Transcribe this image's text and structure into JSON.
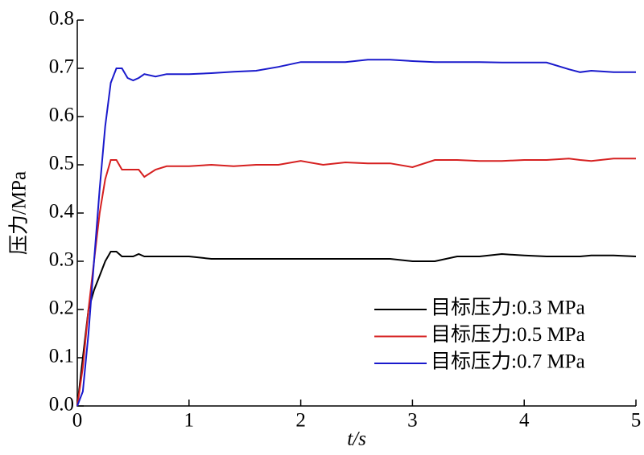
{
  "chart_data": {
    "type": "line",
    "x_label": "t/s",
    "y_label": "压力/MPa",
    "x": [
      0,
      0.05,
      0.1,
      0.15,
      0.2,
      0.25,
      0.3,
      0.35,
      0.4,
      0.45,
      0.5,
      0.55,
      0.6,
      0.7,
      0.8,
      0.9,
      1.0,
      1.2,
      1.4,
      1.6,
      1.8,
      2.0,
      2.2,
      2.4,
      2.6,
      2.8,
      3.0,
      3.2,
      3.4,
      3.6,
      3.8,
      4.0,
      4.2,
      4.4,
      4.5,
      4.6,
      4.8,
      5.0
    ],
    "series": [
      {
        "name": "目标压力:0.3 MPa",
        "color": "#000000",
        "values": [
          0,
          0.1,
          0.2,
          0.24,
          0.27,
          0.3,
          0.32,
          0.32,
          0.31,
          0.31,
          0.31,
          0.315,
          0.31,
          0.31,
          0.31,
          0.31,
          0.31,
          0.305,
          0.305,
          0.305,
          0.305,
          0.305,
          0.305,
          0.305,
          0.305,
          0.305,
          0.3,
          0.3,
          0.31,
          0.31,
          0.315,
          0.312,
          0.31,
          0.31,
          0.31,
          0.312,
          0.312,
          0.31
        ]
      },
      {
        "name": "目标压力:0.5 MPa",
        "color": "#d62020",
        "values": [
          0,
          0.08,
          0.2,
          0.3,
          0.4,
          0.47,
          0.51,
          0.51,
          0.49,
          0.49,
          0.49,
          0.49,
          0.475,
          0.49,
          0.497,
          0.497,
          0.497,
          0.5,
          0.497,
          0.5,
          0.5,
          0.508,
          0.5,
          0.505,
          0.503,
          0.503,
          0.495,
          0.51,
          0.51,
          0.508,
          0.508,
          0.51,
          0.51,
          0.513,
          0.51,
          0.508,
          0.513,
          0.513
        ]
      },
      {
        "name": "目标压力:0.7 MPa",
        "color": "#1a1acc",
        "values": [
          0,
          0.03,
          0.15,
          0.3,
          0.45,
          0.58,
          0.67,
          0.7,
          0.7,
          0.68,
          0.675,
          0.68,
          0.688,
          0.683,
          0.688,
          0.688,
          0.688,
          0.69,
          0.693,
          0.695,
          0.703,
          0.713,
          0.713,
          0.713,
          0.718,
          0.718,
          0.715,
          0.713,
          0.713,
          0.713,
          0.712,
          0.712,
          0.712,
          0.698,
          0.692,
          0.695,
          0.692,
          0.692
        ]
      }
    ],
    "xlim": [
      0,
      5
    ],
    "ylim": [
      0,
      0.8
    ],
    "xticks": [
      0,
      1,
      2,
      3,
      4,
      5
    ],
    "yticks": [
      {
        "value": 0,
        "label": "0.0"
      },
      0.1,
      0.2,
      0.3,
      0.4,
      0.5,
      0.6,
      0.7,
      0.8
    ],
    "legend": "lower right"
  }
}
